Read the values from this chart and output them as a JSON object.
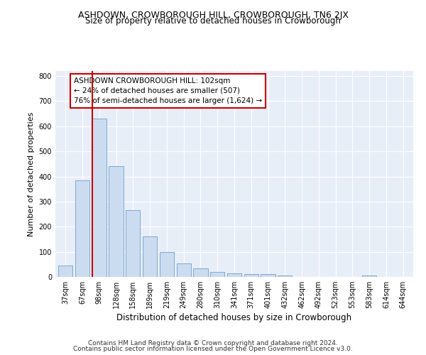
{
  "title": "ASHDOWN, CROWBOROUGH HILL, CROWBOROUGH, TN6 2JX",
  "subtitle": "Size of property relative to detached houses in Crowborough",
  "xlabel": "Distribution of detached houses by size in Crowborough",
  "ylabel": "Number of detached properties",
  "footer1": "Contains HM Land Registry data © Crown copyright and database right 2024.",
  "footer2": "Contains public sector information licensed under the Open Government Licence v3.0.",
  "categories": [
    "37sqm",
    "67sqm",
    "98sqm",
    "128sqm",
    "158sqm",
    "189sqm",
    "219sqm",
    "249sqm",
    "280sqm",
    "310sqm",
    "341sqm",
    "371sqm",
    "401sqm",
    "432sqm",
    "462sqm",
    "492sqm",
    "523sqm",
    "553sqm",
    "583sqm",
    "614sqm",
    "644sqm"
  ],
  "values": [
    45,
    385,
    630,
    440,
    265,
    160,
    100,
    55,
    35,
    20,
    15,
    12,
    12,
    5,
    0,
    0,
    0,
    0,
    5,
    0,
    0
  ],
  "bar_color": "#ccdcf0",
  "bar_edge_color": "#7aaad0",
  "vline_color": "#cc0000",
  "annotation_text": "ASHDOWN CROWBOROUGH HILL: 102sqm\n← 24% of detached houses are smaller (507)\n76% of semi-detached houses are larger (1,624) →",
  "annotation_box_color": "#ffffff",
  "annotation_box_edge": "#cc0000",
  "ylim": [
    0,
    820
  ],
  "yticks": [
    0,
    100,
    200,
    300,
    400,
    500,
    600,
    700,
    800
  ],
  "background_color": "#e8eef8",
  "grid_color": "#ffffff",
  "title_fontsize": 9,
  "subtitle_fontsize": 8.5,
  "ylabel_fontsize": 8,
  "xlabel_fontsize": 8.5,
  "tick_fontsize": 7,
  "footer_fontsize": 6.5,
  "annotation_fontsize": 7.5
}
